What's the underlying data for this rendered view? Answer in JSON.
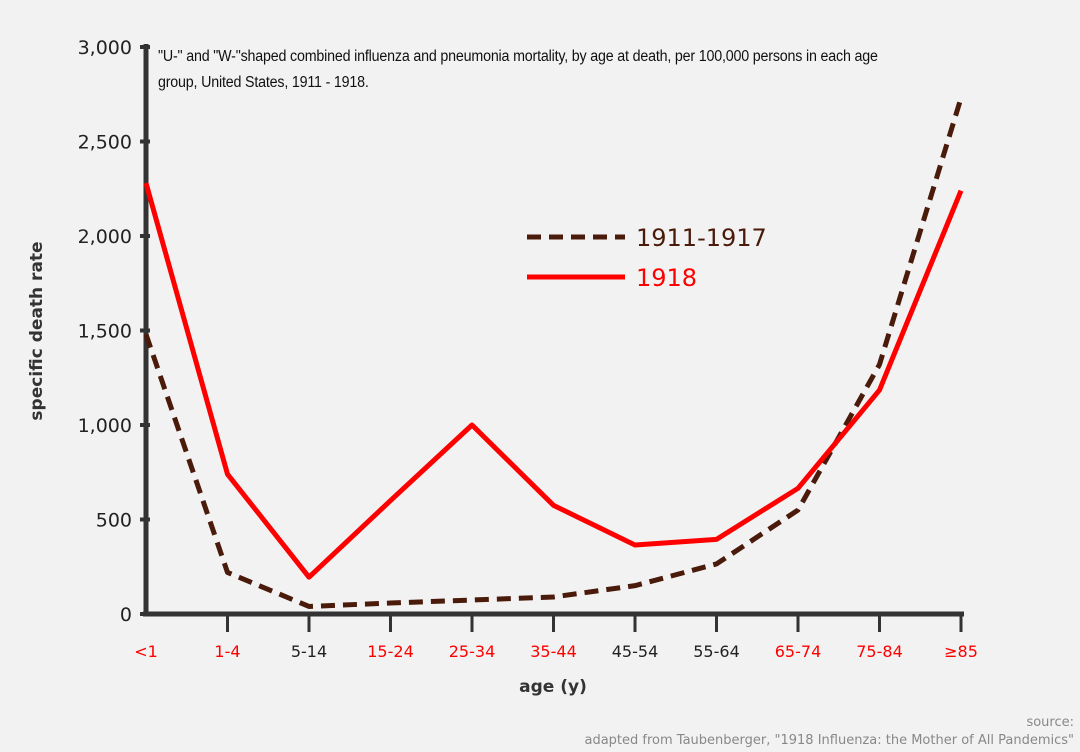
{
  "chart_data": {
    "type": "line",
    "title": "\"U-\" and \"W-\"shaped combined influenza and pneumonia mortality, by age at death, per 100,000 persons in each age group, United States, 1911 - 1918.",
    "xlabel": "age (y)",
    "ylabel": "specific death rate",
    "ylim": [
      0,
      3000
    ],
    "yticks": [
      "0",
      "500",
      "1,000",
      "1,500",
      "2,000",
      "2,500",
      "3,000"
    ],
    "categories": [
      "<1",
      "1-4",
      "5-14",
      "15-24",
      "25-34",
      "35-44",
      "45-54",
      "55-64",
      "65-74",
      "75-84",
      "≥85"
    ],
    "category_colors": [
      "#ff0000",
      "#ff0000",
      "#222222",
      "#ff0000",
      "#ff0000",
      "#ff0000",
      "#222222",
      "#222222",
      "#ff0000",
      "#ff0000",
      "#ff0000"
    ],
    "series": [
      {
        "name": "1911-1917",
        "color": "#4a1a0a",
        "style": "dashed",
        "values": [
          1480,
          220,
          40,
          58,
          74,
          90,
          150,
          265,
          550,
          1320,
          2730
        ]
      },
      {
        "name": "1918",
        "color": "#ff0000",
        "style": "solid",
        "values": [
          2280,
          740,
          195,
          600,
          1000,
          575,
          365,
          395,
          665,
          1185,
          2240
        ]
      }
    ],
    "legend_position": "center",
    "grid": false
  },
  "source": {
    "line1": "source:",
    "line2": "adapted from Taubenberger, \"1918 Influenza: the Mother of All Pandemics\""
  }
}
